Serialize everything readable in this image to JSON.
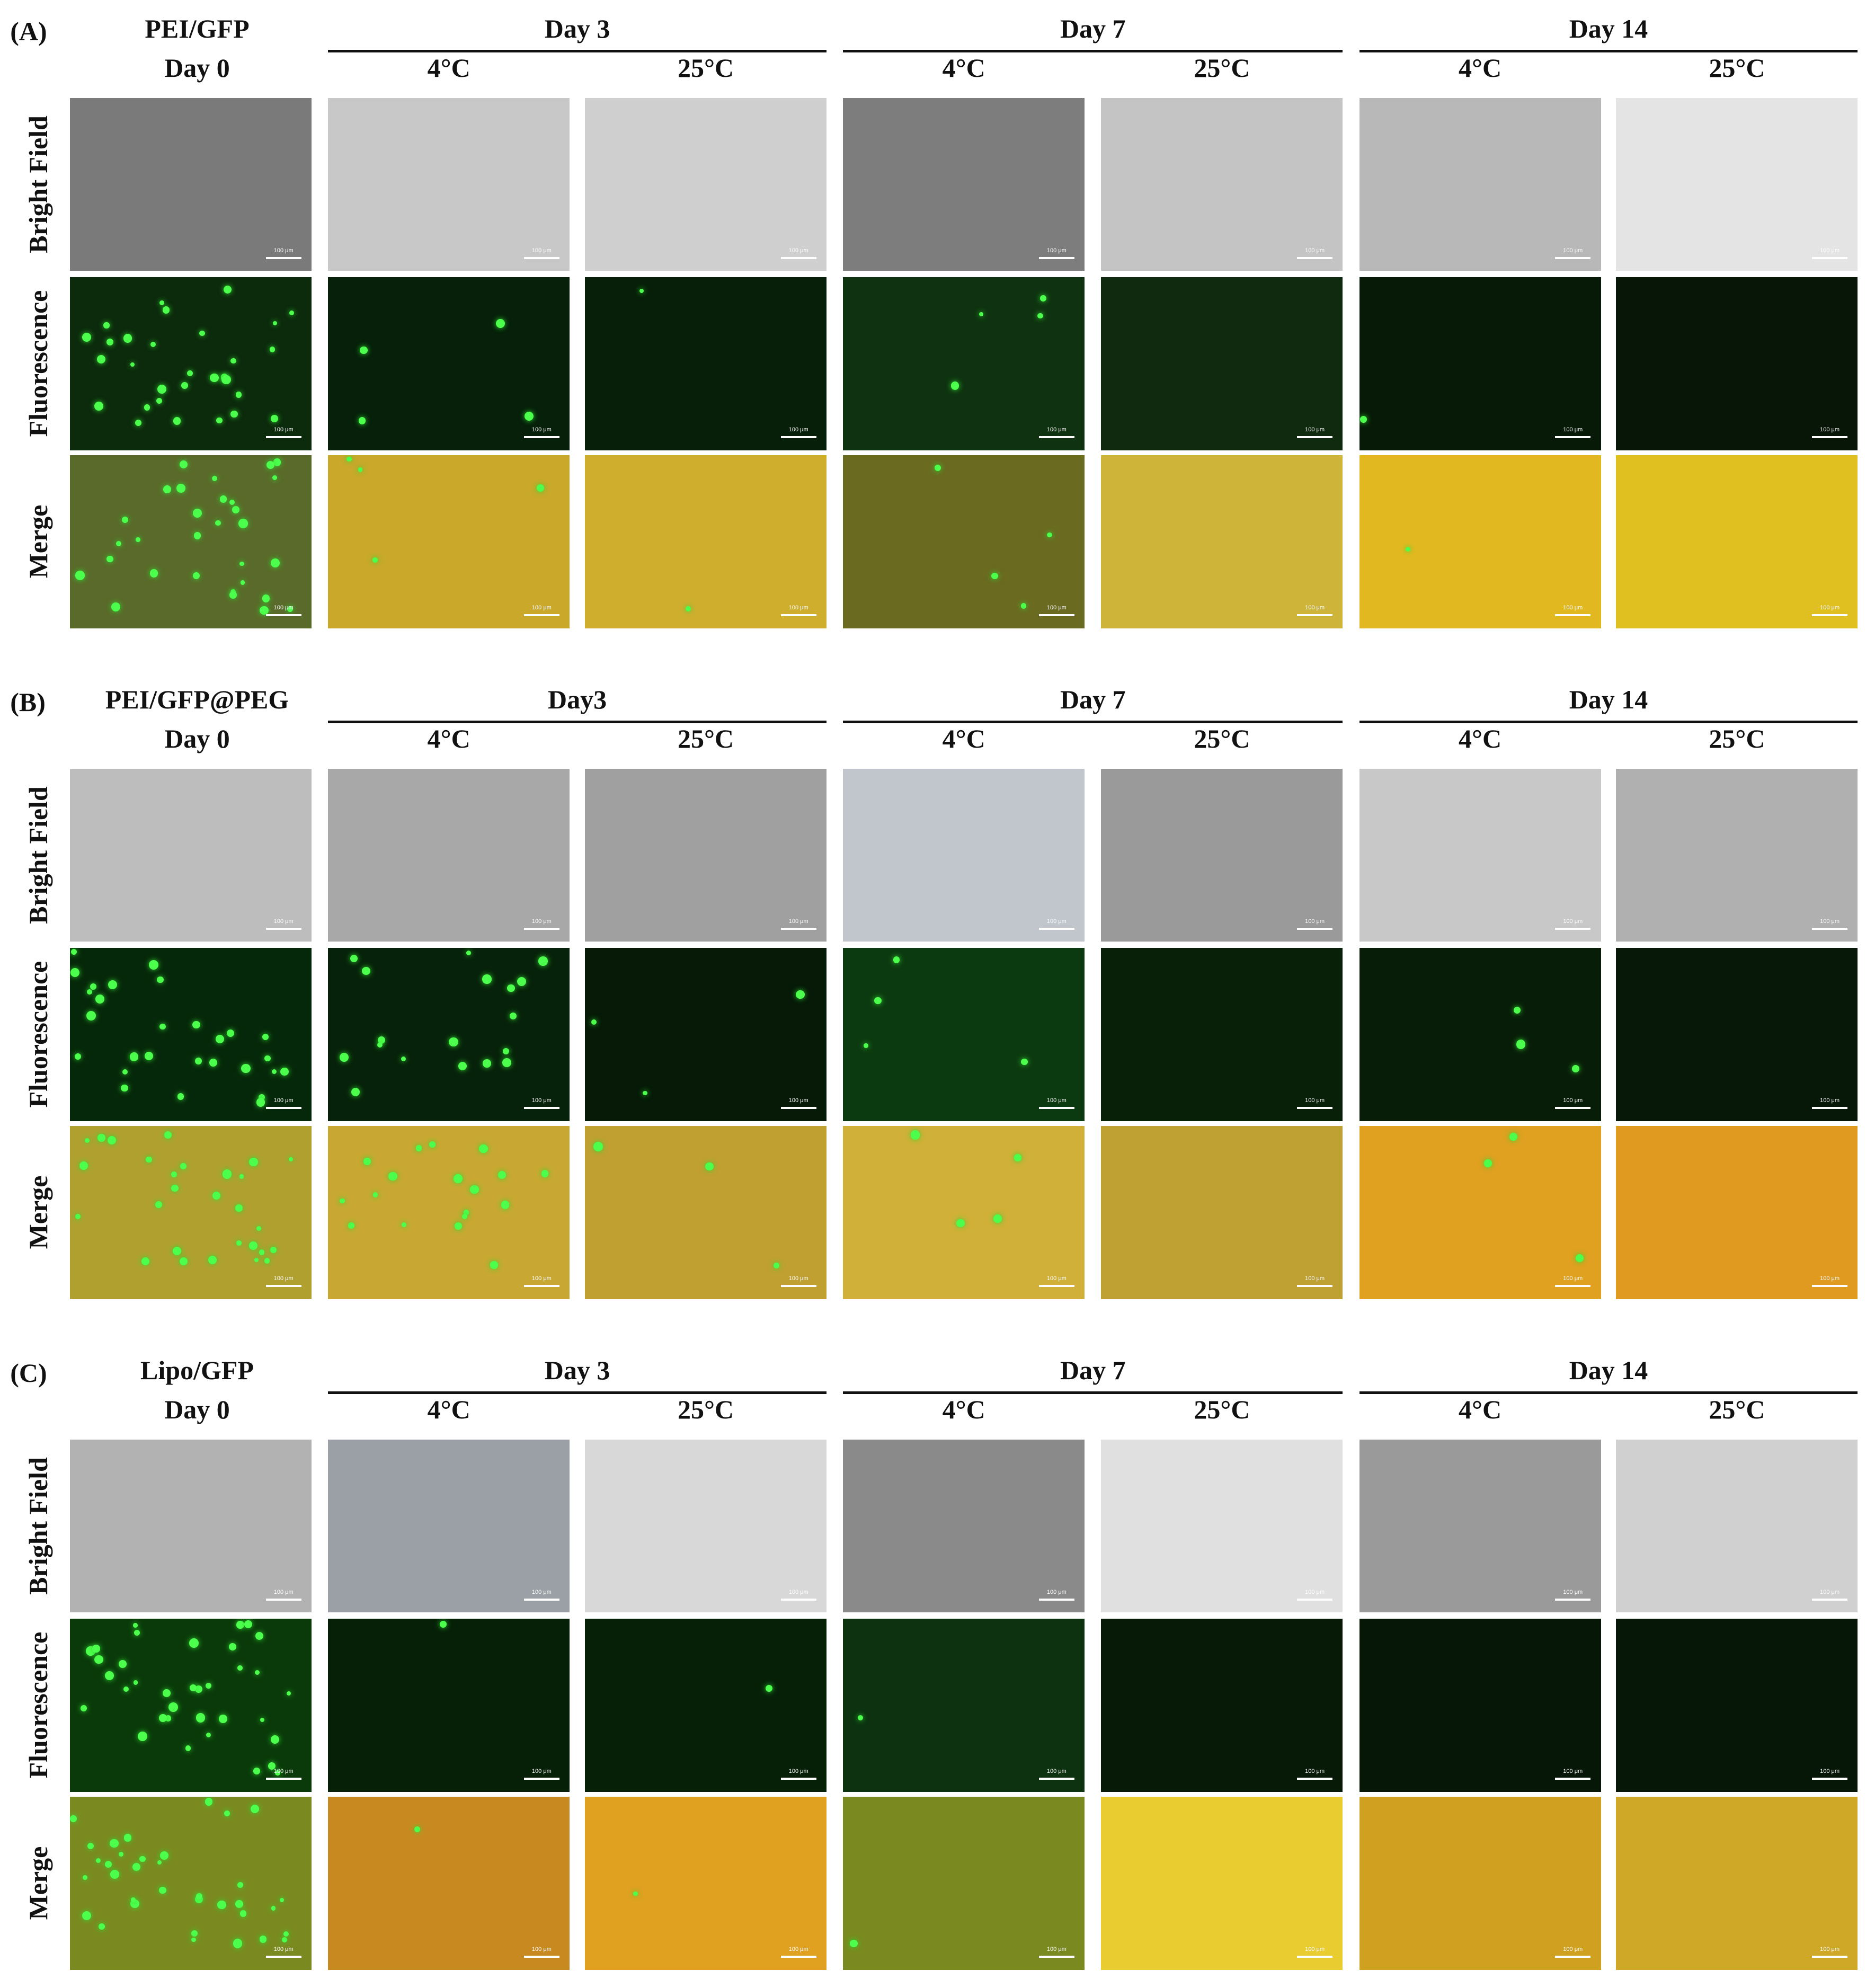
{
  "panels": [
    {
      "label": "(A)",
      "group": "PEI/GFP",
      "baseline": "Day 0",
      "days": [
        {
          "label": "Day 3",
          "temps": [
            "4°C",
            "25°C"
          ]
        },
        {
          "label": "Day 7",
          "temps": [
            "4°C",
            "25°C"
          ]
        },
        {
          "label": "Day 14",
          "temps": [
            "4°C",
            "25°C"
          ]
        }
      ],
      "rows": [
        "Bright Field",
        "Fluorescence",
        "Merge"
      ],
      "scale_bar": "100 μm"
    },
    {
      "label": "(B)",
      "group": "PEI/GFP@PEG",
      "baseline": "Day 0",
      "days": [
        {
          "label": "Day3",
          "temps": [
            "4°C",
            "25°C"
          ]
        },
        {
          "label": "Day 7",
          "temps": [
            "4°C",
            "25°C"
          ]
        },
        {
          "label": "Day 14",
          "temps": [
            "4°C",
            "25°C"
          ]
        }
      ],
      "rows": [
        "Bright Field",
        "Fluorescence",
        "Merge"
      ],
      "scale_bar": "100 μm"
    },
    {
      "label": "(C)",
      "group": "Lipo/GFP",
      "baseline": "Day 0",
      "days": [
        {
          "label": "Day 3",
          "temps": [
            "4°C",
            "25°C"
          ]
        },
        {
          "label": "Day 7",
          "temps": [
            "4°C",
            "25°C"
          ]
        },
        {
          "label": "Day 14",
          "temps": [
            "4°C",
            "25°C"
          ]
        }
      ],
      "rows": [
        "Bright Field",
        "Fluorescence",
        "Merge"
      ],
      "scale_bar": "100 μm"
    }
  ]
}
